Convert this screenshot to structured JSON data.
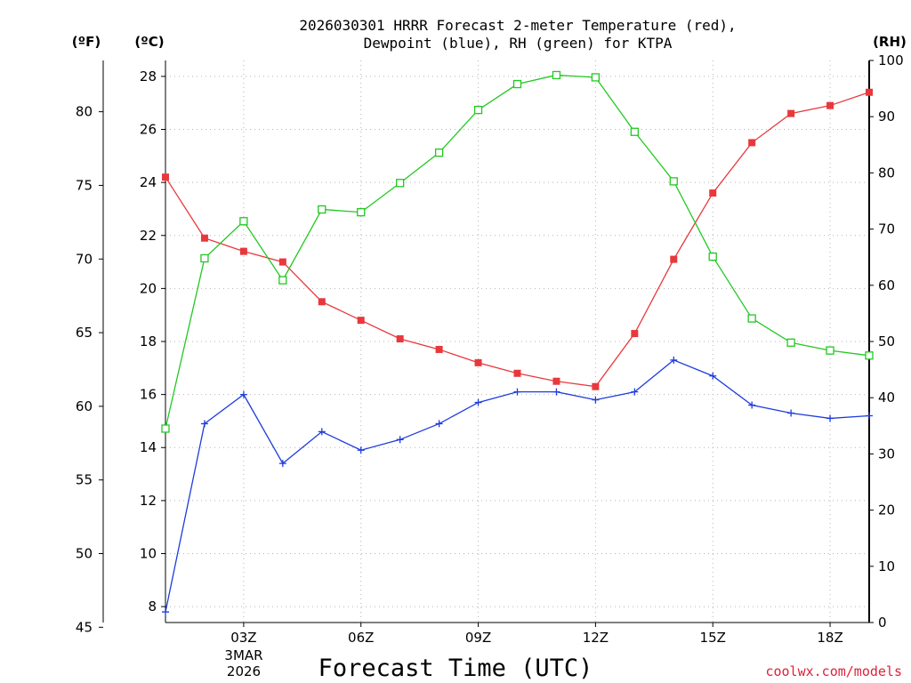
{
  "chart_data": {
    "type": "line",
    "title_line1": "2026030301 HRRR Forecast 2-meter Temperature (red),",
    "title_line2": "Dewpoint (blue), RH (green) for KTPA",
    "xlabel": "Forecast Time (UTC)",
    "credit": "coolwx.com/models",
    "left_f_label": "(ºF)",
    "left_c_label": "(ºC)",
    "right_label": "(RH)",
    "x": [
      1,
      2,
      3,
      4,
      5,
      6,
      7,
      8,
      9,
      10,
      11,
      12,
      13,
      14,
      15,
      16,
      17,
      18,
      19
    ],
    "xlim": [
      1,
      19
    ],
    "x_ticks": [
      {
        "x": 3,
        "label": "03Z"
      },
      {
        "x": 6,
        "label": "06Z"
      },
      {
        "x": 9,
        "label": "09Z"
      },
      {
        "x": 12,
        "label": "12Z"
      },
      {
        "x": 15,
        "label": "15Z"
      },
      {
        "x": 18,
        "label": "18Z"
      }
    ],
    "date_label_line1": "3MAR",
    "date_label_line2": "2026",
    "ylim_c": [
      7.4,
      28.6
    ],
    "yticks_c": [
      8,
      10,
      12,
      14,
      16,
      18,
      20,
      22,
      24,
      26,
      28
    ],
    "yticks_f": [
      45,
      50,
      55,
      60,
      65,
      70,
      75,
      80
    ],
    "ylim_rh": [
      0,
      100
    ],
    "yticks_rh": [
      0,
      10,
      20,
      30,
      40,
      50,
      60,
      70,
      80,
      90,
      100
    ],
    "series": [
      {
        "name": "Temperature",
        "units": "C",
        "color": "#e8383c",
        "marker": "filled-square",
        "values": [
          24.2,
          21.9,
          21.4,
          21.0,
          19.5,
          18.8,
          18.1,
          17.7,
          17.2,
          16.8,
          16.5,
          16.3,
          18.3,
          21.1,
          23.6,
          25.5,
          26.6,
          26.9,
          27.4
        ]
      },
      {
        "name": "Dewpoint",
        "units": "C",
        "color": "#1e3cdc",
        "marker": "plus",
        "values": [
          7.8,
          14.9,
          16.0,
          13.4,
          14.6,
          13.9,
          14.3,
          14.9,
          15.7,
          16.1,
          16.1,
          15.8,
          16.1,
          17.3,
          16.7,
          15.6,
          15.3,
          15.1,
          15.2
        ]
      },
      {
        "name": "RH",
        "units": "%",
        "color": "#22c822",
        "marker": "open-square",
        "values": [
          34.5,
          64.8,
          71.4,
          60.9,
          73.5,
          73.0,
          78.2,
          83.6,
          91.2,
          95.8,
          97.4,
          97.0,
          87.3,
          78.5,
          65.1,
          54.1,
          49.8,
          48.4,
          47.5
        ]
      }
    ]
  }
}
